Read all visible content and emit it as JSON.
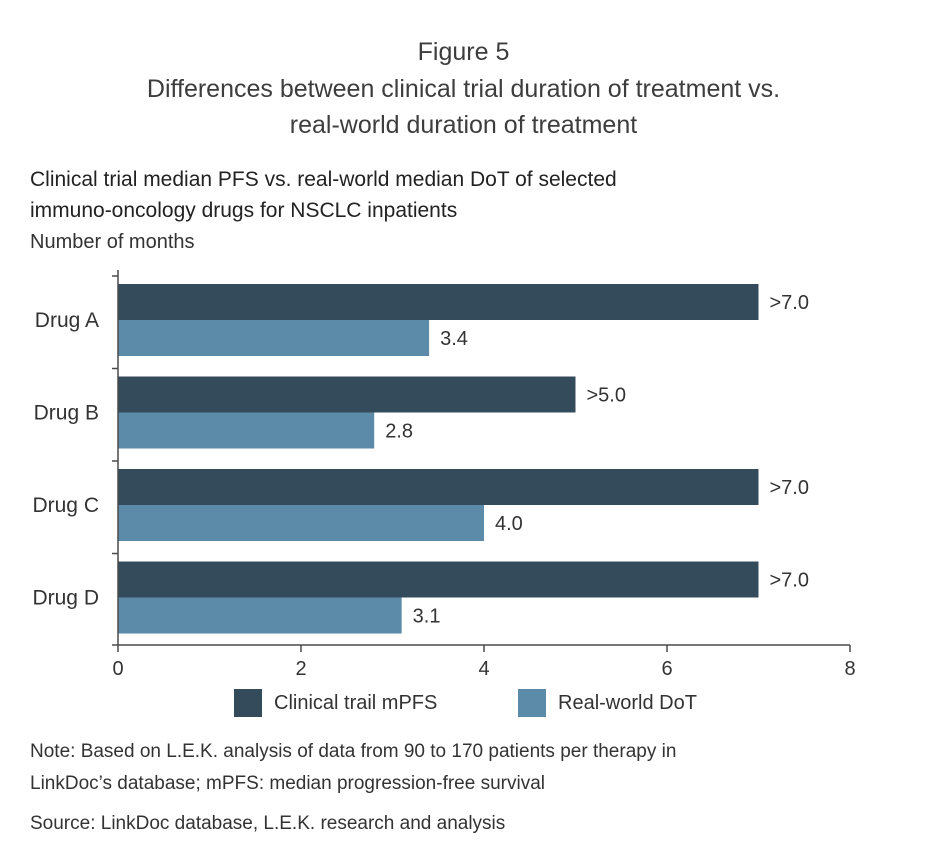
{
  "figure": {
    "number": "Figure 5",
    "title_line1": "Differences between clinical trial duration of treatment vs.",
    "title_line2": "real-world duration of treatment"
  },
  "subtitle": {
    "line1": "Clinical trial median PFS vs. real-world median DoT of selected",
    "line2": "immuno-oncology drugs for NSCLC inpatients",
    "units": "Number of months"
  },
  "notes": {
    "line1": "Note: Based on L.E.K. analysis of data from 90 to 170 patients per therapy in",
    "line2": "LinkDoc’s database; mPFS: median progression-free survival",
    "source": "Source: LinkDoc database, L.E.K. research and analysis"
  },
  "colors": {
    "clinical": "#344b5c",
    "realworld": "#5b8ba8",
    "axis": "#4a4a4a",
    "text": "#333333"
  },
  "chart_data": {
    "type": "bar",
    "orientation": "horizontal",
    "categories": [
      "Drug A",
      "Drug B",
      "Drug C",
      "Drug D"
    ],
    "series": [
      {
        "name": "Clinical trail mPFS",
        "values": [
          7.0,
          5.0,
          7.0,
          7.0
        ],
        "labels": [
          ">7.0",
          ">5.0",
          ">7.0",
          ">7.0"
        ],
        "color": "#344b5c"
      },
      {
        "name": "Real-world DoT",
        "values": [
          3.4,
          2.8,
          4.0,
          3.1
        ],
        "labels": [
          "3.4",
          "2.8",
          "4.0",
          "3.1"
        ],
        "color": "#5b8ba8"
      }
    ],
    "xlim": [
      0,
      8
    ],
    "xticks": [
      0,
      2,
      4,
      6,
      8
    ],
    "title": "Clinical trial median PFS vs. real-world median DoT of selected immuno-oncology drugs for NSCLC inpatients",
    "xlabel": "Number of months",
    "ylabel": "",
    "grid": false,
    "legend": "bottom"
  }
}
